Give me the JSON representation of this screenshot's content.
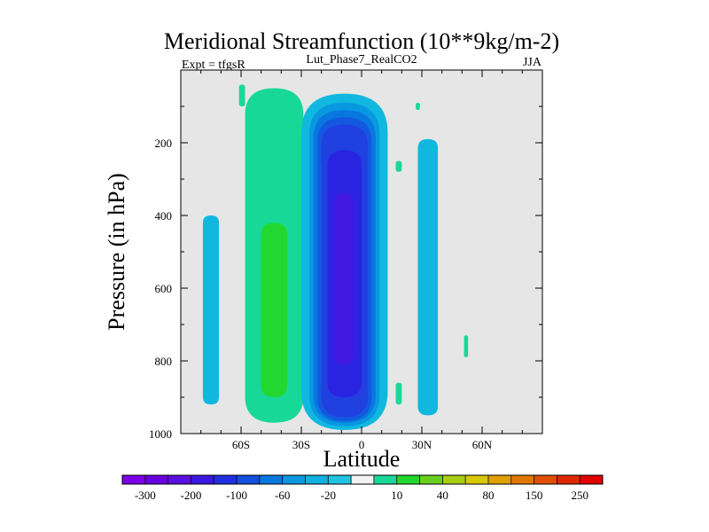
{
  "chart_data": {
    "type": "contour",
    "title": "Meridional Streamfunction (10**9kg/m-2)",
    "subtitle_left": "Expt = tfgsR",
    "subtitle_center": "Lut_Phase7_RealCO2",
    "subtitle_right": "JJA",
    "xlabel": "Latitude",
    "ylabel": "Pressure (in hPa)",
    "xlim": [
      -90,
      90
    ],
    "ylim": [
      1000,
      0
    ],
    "x_ticks": [
      {
        "value": -60,
        "label": "60S"
      },
      {
        "value": -30,
        "label": "30S"
      },
      {
        "value": 0,
        "label": "0"
      },
      {
        "value": 30,
        "label": "30N"
      },
      {
        "value": 60,
        "label": "60N"
      }
    ],
    "y_ticks": [
      {
        "value": 200,
        "label": "200"
      },
      {
        "value": 400,
        "label": "400"
      },
      {
        "value": 600,
        "label": "600"
      },
      {
        "value": 800,
        "label": "800"
      },
      {
        "value": 1000,
        "label": "1000"
      }
    ],
    "background_color": "#e6e6e6",
    "colorbar": {
      "colors": [
        "#7b00e8",
        "#6a00e0",
        "#5a10e0",
        "#3a18e0",
        "#2030e0",
        "#1450e0",
        "#0878e0",
        "#0898e0",
        "#10b0e0",
        "#20c4e0",
        "#f2f2f2",
        "#18d898",
        "#22d830",
        "#6ad020",
        "#a8cc10",
        "#d8c800",
        "#e0a000",
        "#e07800",
        "#e05000",
        "#e02800",
        "#e00000"
      ],
      "labels": [
        "-300",
        "-200",
        "-100",
        "-60",
        "-20",
        "10",
        "40",
        "80",
        "150",
        "250"
      ]
    },
    "cells": [
      {
        "name": "sh-outer-cell",
        "level": -20,
        "lat_min": -79,
        "lat_max": -71,
        "p_min": 400,
        "p_max": 920
      },
      {
        "name": "sh-ferrel-outer",
        "level": 10,
        "lat_min": -58,
        "lat_max": -29,
        "p_min": 50,
        "p_max": 970
      },
      {
        "name": "sh-ferrel-core",
        "level": 40,
        "lat_min": -50,
        "lat_max": -37,
        "p_min": 420,
        "p_max": 900
      },
      {
        "name": "hadley-level-1",
        "level": -20,
        "lat_min": -30,
        "lat_max": 13,
        "p_min": 65,
        "p_max": 990
      },
      {
        "name": "hadley-level-2",
        "level": -40,
        "lat_min": -26,
        "lat_max": 9,
        "p_min": 90,
        "p_max": 980
      },
      {
        "name": "hadley-level-3",
        "level": -60,
        "lat_min": -24,
        "lat_max": 7,
        "p_min": 110,
        "p_max": 970
      },
      {
        "name": "hadley-level-4",
        "level": -80,
        "lat_min": -22,
        "lat_max": 5,
        "p_min": 130,
        "p_max": 965
      },
      {
        "name": "hadley-level-5",
        "level": -100,
        "lat_min": -20,
        "lat_max": 3,
        "p_min": 150,
        "p_max": 955
      },
      {
        "name": "hadley-level-6",
        "level": -150,
        "lat_min": -17,
        "lat_max": 0,
        "p_min": 220,
        "p_max": 900
      },
      {
        "name": "hadley-core",
        "level": -200,
        "lat_min": -14,
        "lat_max": -4,
        "p_min": 340,
        "p_max": 810
      },
      {
        "name": "nh-cell",
        "level": -20,
        "lat_min": 28,
        "lat_max": 38,
        "p_min": 190,
        "p_max": 950
      },
      {
        "name": "nh-speck-1",
        "level": 10,
        "lat_min": 17,
        "lat_max": 20,
        "p_min": 250,
        "p_max": 280
      },
      {
        "name": "nh-speck-2",
        "level": 10,
        "lat_min": 17,
        "lat_max": 20,
        "p_min": 860,
        "p_max": 920
      },
      {
        "name": "nh-speck-3",
        "level": 10,
        "lat_min": 51,
        "lat_max": 53,
        "p_min": 730,
        "p_max": 790
      },
      {
        "name": "nh-speck-4",
        "level": 10,
        "lat_min": 27,
        "lat_max": 29,
        "p_min": 90,
        "p_max": 110
      },
      {
        "name": "sh-speck-1",
        "level": 10,
        "lat_min": -61,
        "lat_max": -58,
        "p_min": 40,
        "p_max": 100
      }
    ]
  }
}
